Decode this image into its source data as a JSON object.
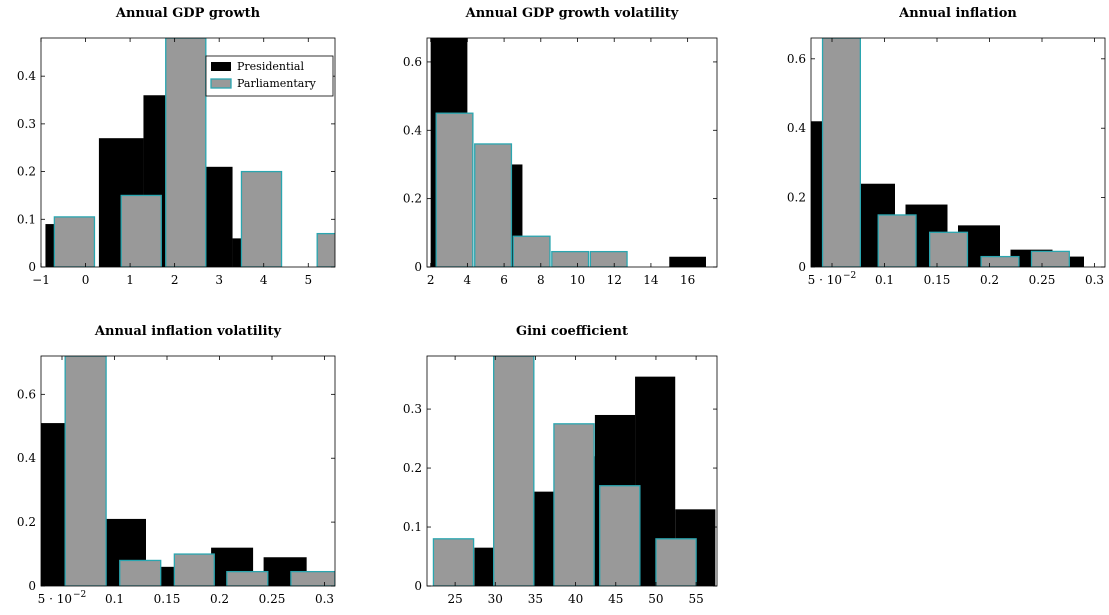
{
  "chart_data": [
    {
      "type": "bar",
      "title": "Annual GDP growth",
      "xlim": [
        -1,
        5.6
      ],
      "ylim": [
        0,
        0.48
      ],
      "xticks": [
        -1,
        0,
        1,
        2,
        3,
        4,
        5
      ],
      "xtick_labels": [
        "−1",
        "0",
        "1",
        "2",
        "3",
        "4",
        "5"
      ],
      "yticks": [
        0,
        0.1,
        0.2,
        0.3,
        0.4
      ],
      "ytick_labels": [
        "0",
        "0.1",
        "0.2",
        "0.3",
        "0.4"
      ],
      "legend": {
        "position": "top-right",
        "entries": [
          "Presidential",
          "Parliamentary"
        ]
      },
      "series": [
        {
          "name": "Presidential",
          "color": "#000000",
          "bins": [
            [
              -0.9,
              -0.6
            ],
            [
              0.3,
              1.3
            ],
            [
              1.3,
              2.3
            ],
            [
              2.3,
              3.3
            ],
            [
              3.3,
              4.3
            ]
          ],
          "values": [
            0.09,
            0.27,
            0.36,
            0.21,
            0.06
          ]
        },
        {
          "name": "Parliamentary",
          "color": "#999999",
          "bins": [
            [
              -0.7,
              0.2
            ],
            [
              0.8,
              1.7
            ],
            [
              1.8,
              2.7
            ],
            [
              3.5,
              4.4
            ],
            [
              5.2,
              6.1
            ]
          ],
          "values": [
            0.105,
            0.15,
            0.48,
            0.2,
            0.07
          ]
        }
      ]
    },
    {
      "type": "bar",
      "title": "Annual GDP growth volatility",
      "xlim": [
        1.8,
        17.6
      ],
      "ylim": [
        0,
        0.67
      ],
      "xticks": [
        2,
        4,
        6,
        8,
        10,
        12,
        14,
        16
      ],
      "xtick_labels": [
        "2",
        "4",
        "6",
        "8",
        "10",
        "12",
        "14",
        "16"
      ],
      "yticks": [
        0,
        0.2,
        0.4,
        0.6
      ],
      "ytick_labels": [
        "0",
        "0.2",
        "0.4",
        "0.6"
      ],
      "series": [
        {
          "name": "Presidential",
          "color": "#000000",
          "bins": [
            [
              2.0,
              4.0
            ],
            [
              6.0,
              7.0
            ],
            [
              15.0,
              17.0
            ]
          ],
          "values": [
            0.67,
            0.3,
            0.03
          ]
        },
        {
          "name": "Parliamentary",
          "color": "#999999",
          "bins": [
            [
              2.3,
              4.3
            ],
            [
              4.4,
              6.4
            ],
            [
              6.5,
              8.5
            ],
            [
              8.6,
              10.6
            ],
            [
              10.7,
              12.7
            ]
          ],
          "values": [
            0.45,
            0.36,
            0.09,
            0.045,
            0.045
          ]
        }
      ]
    },
    {
      "type": "bar",
      "title": "Annual inflation",
      "xlim": [
        0.03,
        0.31
      ],
      "ylim": [
        0,
        0.66
      ],
      "xticks": [
        0.05,
        0.1,
        0.15,
        0.2,
        0.25,
        0.3
      ],
      "xtick_labels": [
        "5 · 10",
        "0.1",
        "0.15",
        "0.2",
        "0.25",
        "0.3"
      ],
      "xtick_exponent": "−2",
      "yticks": [
        0,
        0.2,
        0.4,
        0.6
      ],
      "ytick_labels": [
        "0",
        "0.2",
        "0.4",
        "0.6"
      ],
      "series": [
        {
          "name": "Presidential",
          "color": "#000000",
          "bins": [
            [
              0.03,
              0.05
            ],
            [
              0.07,
              0.11
            ],
            [
              0.12,
              0.16
            ],
            [
              0.17,
              0.21
            ],
            [
              0.22,
              0.26
            ],
            [
              0.26,
              0.29
            ]
          ],
          "values": [
            0.42,
            0.24,
            0.18,
            0.12,
            0.05,
            0.03
          ]
        },
        {
          "name": "Parliamentary",
          "color": "#999999",
          "bins": [
            [
              0.041,
              0.077
            ],
            [
              0.094,
              0.13
            ],
            [
              0.143,
              0.179
            ],
            [
              0.192,
              0.228
            ],
            [
              0.24,
              0.276
            ]
          ],
          "values": [
            0.66,
            0.15,
            0.1,
            0.03,
            0.045
          ]
        }
      ]
    },
    {
      "type": "bar",
      "title": "Annual inflation volatility",
      "xlim": [
        0.03,
        0.31
      ],
      "ylim": [
        0,
        0.72
      ],
      "xticks": [
        0.05,
        0.1,
        0.15,
        0.2,
        0.25,
        0.3
      ],
      "xtick_labels": [
        "5 · 10",
        "0.1",
        "0.15",
        "0.2",
        "0.25",
        "0.3"
      ],
      "xtick_exponent": "−2",
      "yticks": [
        0,
        0.2,
        0.4,
        0.6
      ],
      "ytick_labels": [
        "0",
        "0.2",
        "0.4",
        "0.6"
      ],
      "series": [
        {
          "name": "Presidential",
          "color": "#000000",
          "bins": [
            [
              0.03,
              0.053
            ],
            [
              0.09,
              0.13
            ],
            [
              0.142,
              0.18
            ],
            [
              0.192,
              0.232
            ],
            [
              0.242,
              0.283
            ]
          ],
          "values": [
            0.51,
            0.21,
            0.06,
            0.12,
            0.09
          ]
        },
        {
          "name": "Parliamentary",
          "color": "#999999",
          "bins": [
            [
              0.053,
              0.092
            ],
            [
              0.105,
              0.144
            ],
            [
              0.157,
              0.195
            ],
            [
              0.207,
              0.246
            ],
            [
              0.268,
              0.31
            ]
          ],
          "values": [
            0.72,
            0.08,
            0.1,
            0.045,
            0.045
          ]
        }
      ]
    },
    {
      "type": "bar",
      "title": "Gini coefficient",
      "xlim": [
        21.5,
        57.6
      ],
      "ylim": [
        0,
        0.39
      ],
      "xticks": [
        25,
        30,
        35,
        40,
        45,
        50,
        55
      ],
      "xtick_labels": [
        "25",
        "30",
        "35",
        "40",
        "45",
        "50",
        "55"
      ],
      "yticks": [
        0,
        0.1,
        0.2,
        0.3
      ],
      "ytick_labels": [
        "0",
        "0.1",
        "0.2",
        "0.3"
      ],
      "series": [
        {
          "name": "Presidential",
          "color": "#000000",
          "bins": [
            [
              27.4,
              32.4
            ],
            [
              32.4,
              37.4
            ],
            [
              37.4,
              42.4
            ],
            [
              42.4,
              47.4
            ],
            [
              47.4,
              52.4
            ],
            [
              52.4,
              57.4
            ]
          ],
          "values": [
            0.065,
            0.16,
            0.22,
            0.29,
            0.355,
            0.13
          ]
        },
        {
          "name": "Parliamentary",
          "color": "#999999",
          "bins": [
            [
              22.3,
              27.3
            ],
            [
              29.8,
              34.8
            ],
            [
              37.3,
              42.3
            ],
            [
              43.0,
              48.0
            ],
            [
              50.0,
              55.0
            ]
          ],
          "values": [
            0.08,
            0.39,
            0.275,
            0.17,
            0.08
          ]
        }
      ]
    }
  ]
}
